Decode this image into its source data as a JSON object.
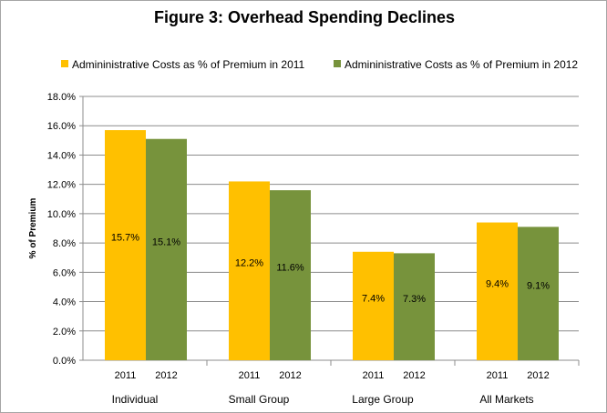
{
  "chart_data": {
    "type": "bar",
    "title": "Figure 3: Overhead Spending Declines",
    "ylabel": "% of Premium",
    "ylim": [
      0,
      18
    ],
    "yticks": [
      "0.0%",
      "2.0%",
      "4.0%",
      "6.0%",
      "8.0%",
      "10.0%",
      "12.0%",
      "14.0%",
      "16.0%",
      "18.0%"
    ],
    "categories": [
      "Individual",
      "Small Group",
      "Large Group",
      "All Markets"
    ],
    "sub_labels": [
      "2011",
      "2012"
    ],
    "series": [
      {
        "name": "Admininistrative Costs as % of Premium in 2011",
        "color": "#ffc000",
        "values": [
          15.7,
          12.2,
          7.4,
          9.4
        ],
        "labels": [
          "15.7%",
          "12.2%",
          "7.4%",
          "9.4%"
        ]
      },
      {
        "name": "Admininistrative  Costs as % of Premium in 2012",
        "color": "#77933c",
        "values": [
          15.1,
          11.6,
          7.3,
          9.1
        ],
        "labels": [
          "15.1%",
          "11.6%",
          "7.3%",
          "9.1%"
        ]
      }
    ],
    "grid": true,
    "legend_position": "top"
  }
}
